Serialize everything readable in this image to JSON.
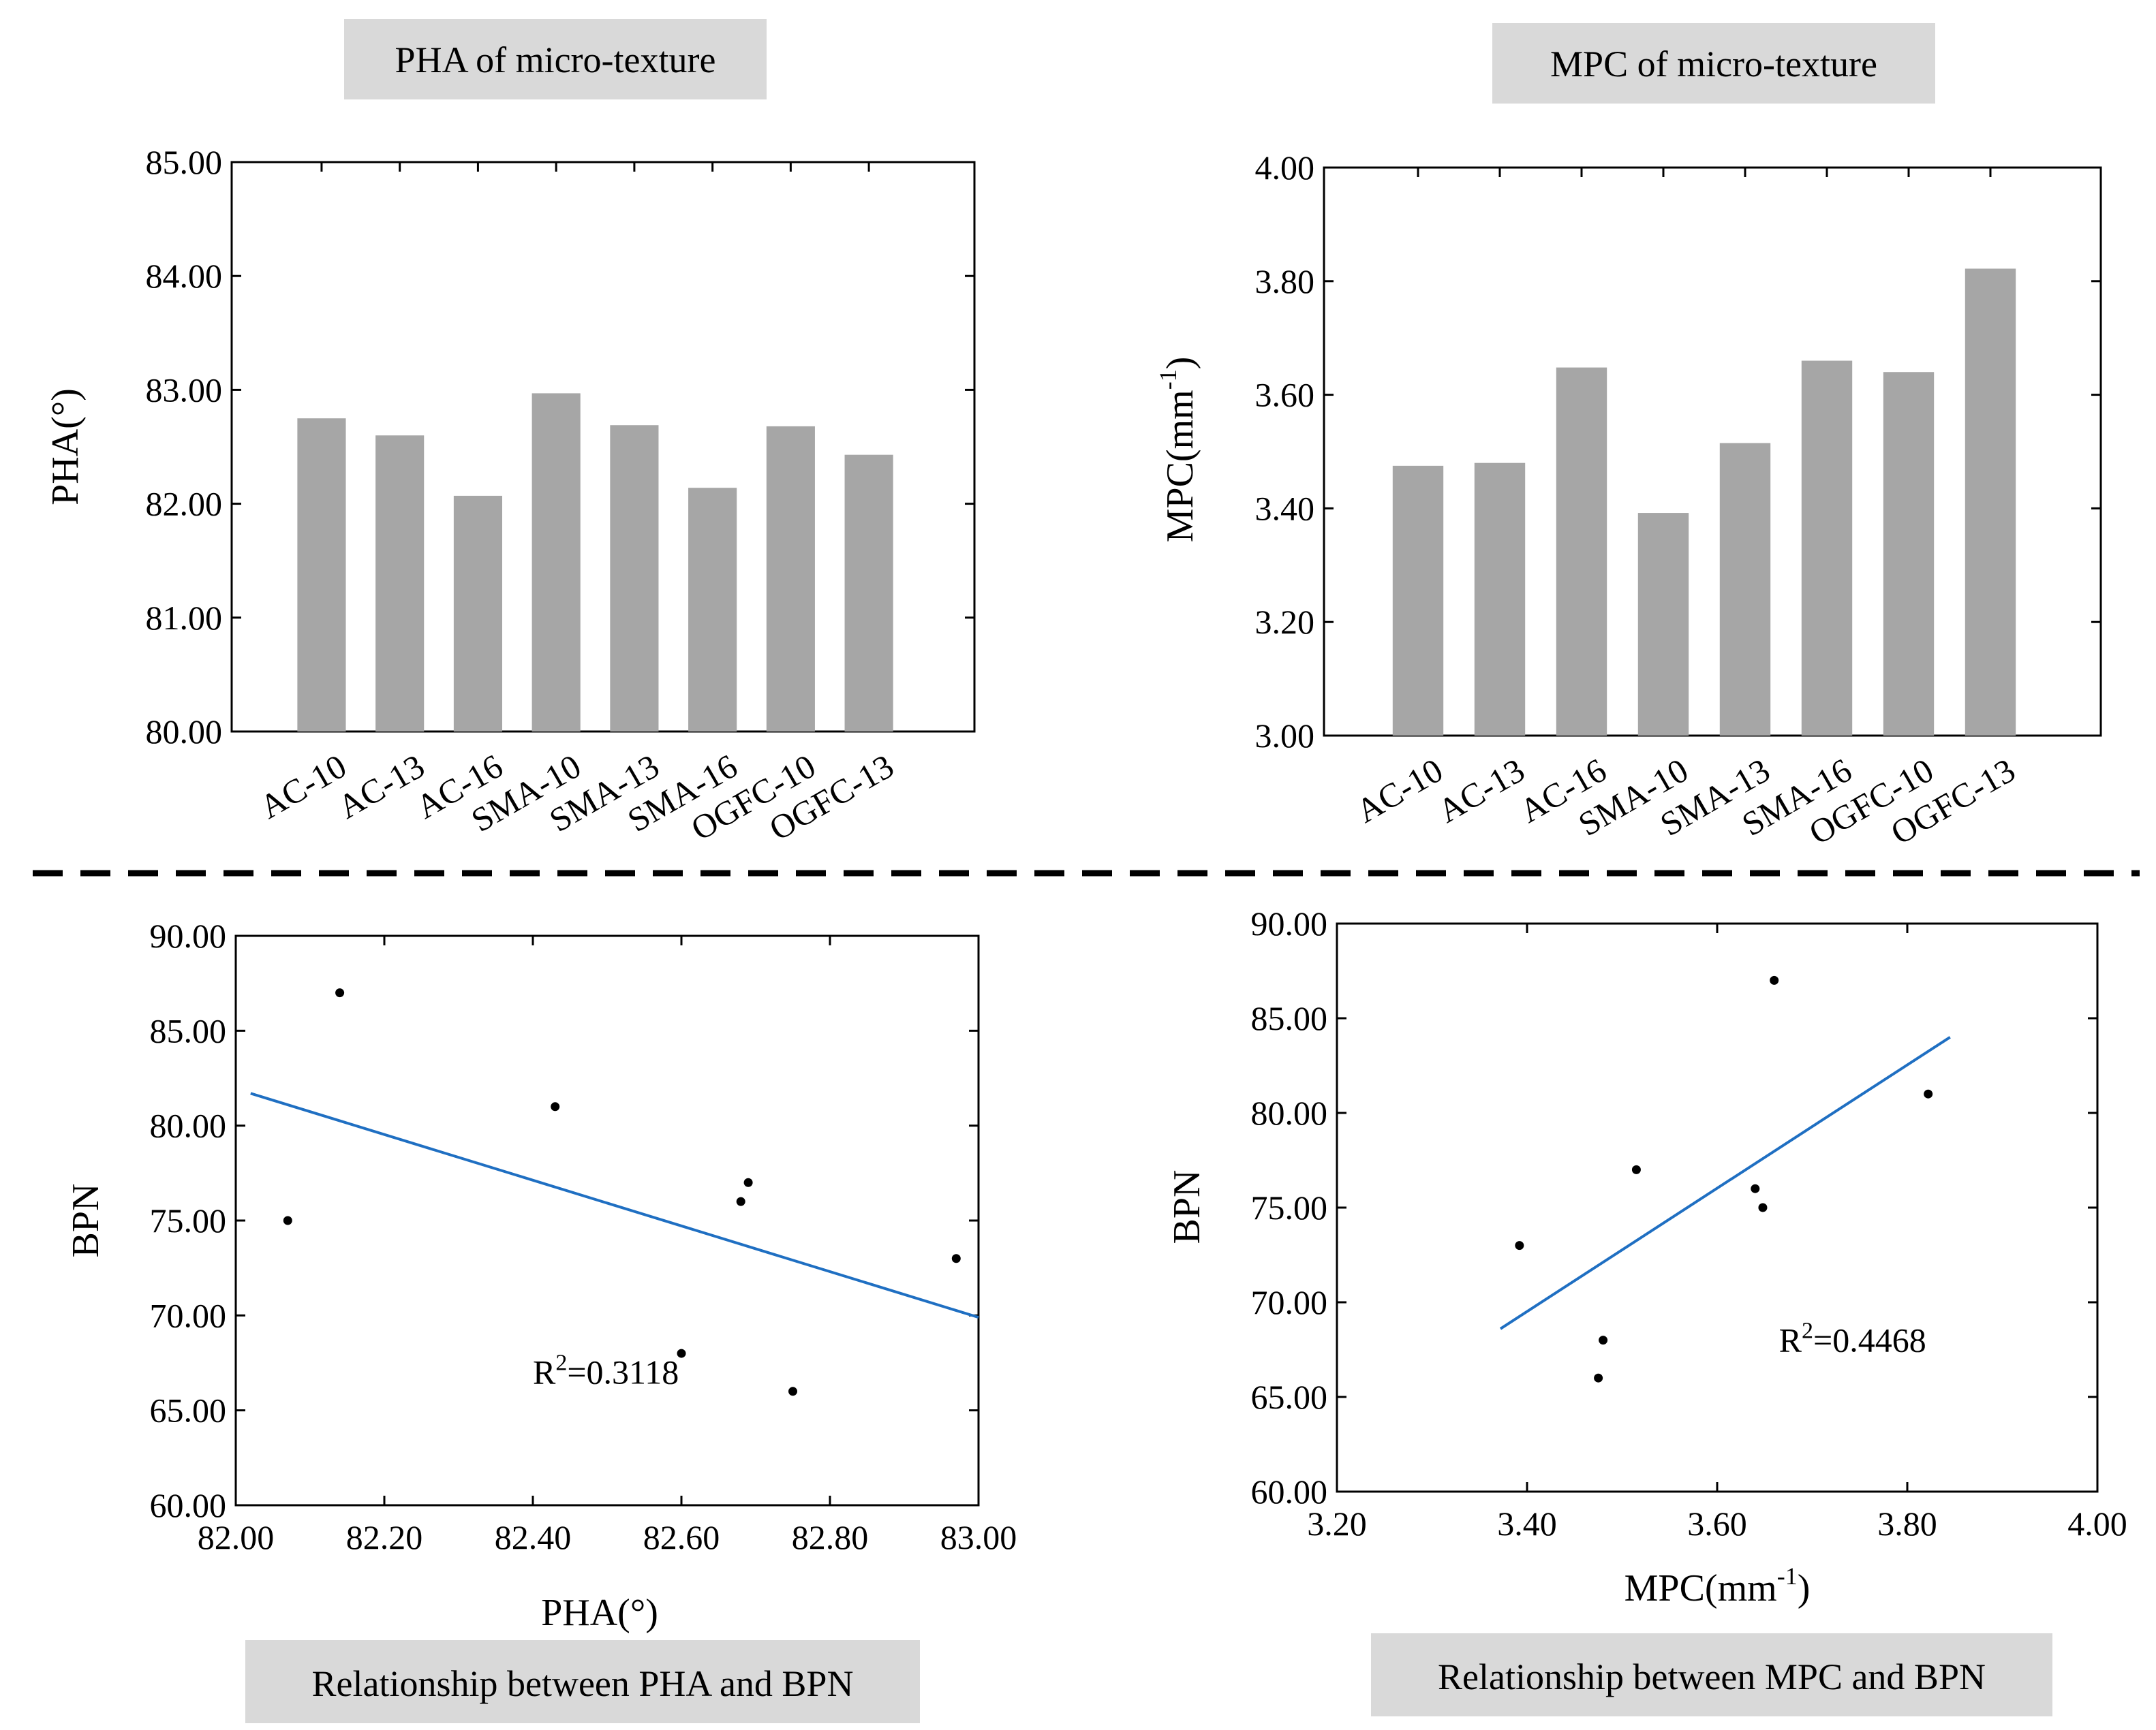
{
  "colors": {
    "bar": "#a6a6a6",
    "trend_line": "#1f6fc2",
    "point": "#000000",
    "caption_bg": "#d9d9d9",
    "divider": "#000000"
  },
  "chart_data": [
    {
      "id": "pha-bar",
      "type": "bar",
      "title": "PHA of micro-texture",
      "xlabel": "",
      "ylabel": "PHA(°)",
      "categories": [
        "AC-10",
        "AC-13",
        "AC-16",
        "SMA-10",
        "SMA-13",
        "SMA-16",
        "OGFC-10",
        "OGFC-13"
      ],
      "values": [
        82.75,
        82.6,
        82.07,
        82.97,
        82.69,
        82.14,
        82.68,
        82.43
      ],
      "ylim": [
        80,
        85
      ],
      "yticks": [
        80,
        81,
        82,
        83,
        84,
        85
      ],
      "ytick_labels": [
        "80.00",
        "81.00",
        "82.00",
        "83.00",
        "84.00",
        "85.00"
      ],
      "grid": false
    },
    {
      "id": "mpc-bar",
      "type": "bar",
      "title": "MPC of micro-texture",
      "xlabel": "",
      "ylabel": "MPC(mm",
      "ylabel_sup": "-1",
      "ylabel_end": ")",
      "categories": [
        "AC-10",
        "AC-13",
        "AC-16",
        "SMA-10",
        "SMA-13",
        "SMA-16",
        "OGFC-10",
        "OGFC-13"
      ],
      "values": [
        3.475,
        3.48,
        3.648,
        3.392,
        3.515,
        3.66,
        3.64,
        3.822
      ],
      "ylim": [
        3.0,
        4.0
      ],
      "yticks": [
        3.0,
        3.2,
        3.4,
        3.6,
        3.8,
        4.0
      ],
      "ytick_labels": [
        "3.00",
        "3.20",
        "3.40",
        "3.60",
        "3.80",
        "4.00"
      ],
      "grid": false
    },
    {
      "id": "pha-bpn",
      "type": "scatter",
      "title": "",
      "xlabel": "PHA(°)",
      "ylabel": "BPN",
      "points": [
        {
          "x": 82.07,
          "y": 75
        },
        {
          "x": 82.14,
          "y": 87
        },
        {
          "x": 82.43,
          "y": 81
        },
        {
          "x": 82.6,
          "y": 68
        },
        {
          "x": 82.68,
          "y": 76
        },
        {
          "x": 82.69,
          "y": 77
        },
        {
          "x": 82.75,
          "y": 66
        },
        {
          "x": 82.97,
          "y": 73
        }
      ],
      "trendline": {
        "x": [
          82.02,
          83.0
        ],
        "y": [
          81.7,
          69.9
        ]
      },
      "annotation": {
        "text_base": "R",
        "text_sup": "2",
        "text_rest": "=0.3118",
        "x": 82.4,
        "y": 66.4
      },
      "xlim": [
        82.0,
        83.0
      ],
      "xticks": [
        82.0,
        82.2,
        82.4,
        82.6,
        82.8,
        83.0
      ],
      "xtick_labels": [
        "82.00",
        "82.20",
        "82.40",
        "82.60",
        "82.80",
        "83.00"
      ],
      "ylim": [
        60,
        90
      ],
      "yticks": [
        60,
        65,
        70,
        75,
        80,
        85,
        90
      ],
      "ytick_labels": [
        "60.00",
        "65.00",
        "70.00",
        "75.00",
        "80.00",
        "85.00",
        "90.00"
      ],
      "caption": "Relationship between PHA and BPN",
      "grid": false
    },
    {
      "id": "mpc-bpn",
      "type": "scatter",
      "title": "",
      "xlabel": "MPC(mm",
      "xlabel_sup": "-1",
      "xlabel_end": ")",
      "ylabel": "BPN",
      "points": [
        {
          "x": 3.392,
          "y": 73
        },
        {
          "x": 3.475,
          "y": 66
        },
        {
          "x": 3.48,
          "y": 68
        },
        {
          "x": 3.515,
          "y": 77
        },
        {
          "x": 3.64,
          "y": 76
        },
        {
          "x": 3.648,
          "y": 75
        },
        {
          "x": 3.66,
          "y": 87
        },
        {
          "x": 3.822,
          "y": 81
        }
      ],
      "trendline": {
        "x": [
          3.372,
          3.845
        ],
        "y": [
          68.6,
          84.0
        ]
      },
      "annotation": {
        "text_base": "R",
        "text_sup": "2",
        "text_rest": "=0.4468",
        "x": 3.665,
        "y": 67.4
      },
      "xlim": [
        3.2,
        4.0
      ],
      "xticks": [
        3.2,
        3.4,
        3.6,
        3.8,
        4.0
      ],
      "xtick_labels": [
        "3.20",
        "3.40",
        "3.60",
        "3.80",
        "4.00"
      ],
      "ylim": [
        60,
        90
      ],
      "yticks": [
        60,
        65,
        70,
        75,
        80,
        85,
        90
      ],
      "ytick_labels": [
        "60.00",
        "65.00",
        "70.00",
        "75.00",
        "80.00",
        "85.00",
        "90.00"
      ],
      "caption": "Relationship between MPC and BPN",
      "grid": false
    }
  ]
}
